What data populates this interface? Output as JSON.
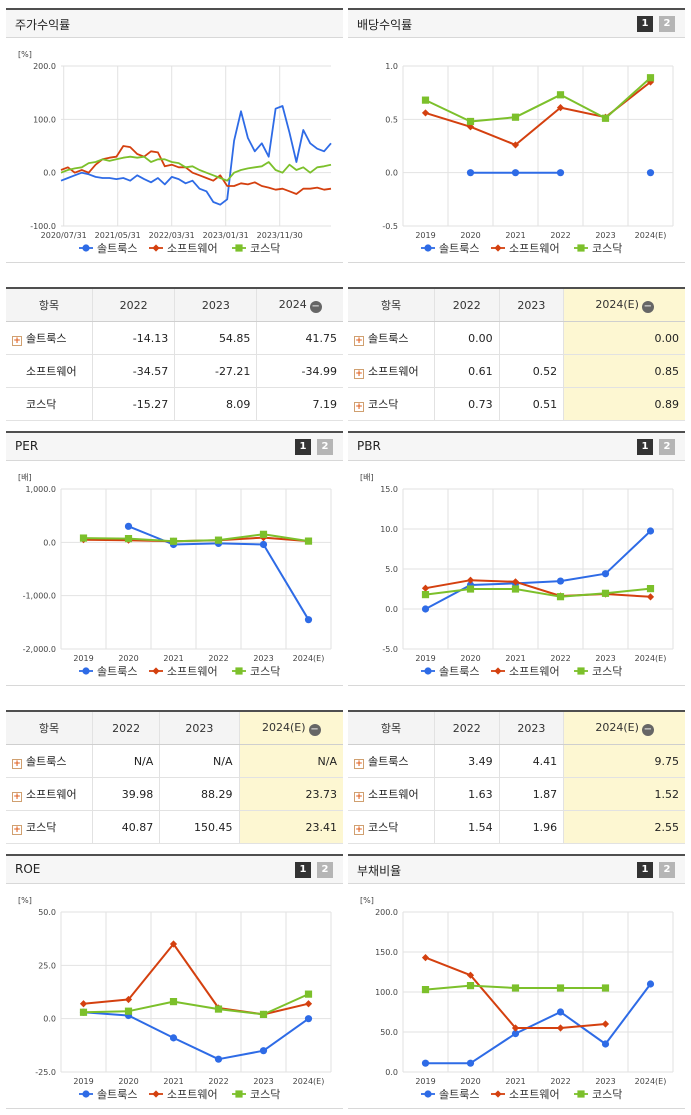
{
  "series_names": [
    "솔트룩스",
    "소프트웨어",
    "코스닥"
  ],
  "colors": {
    "solt": "#2e6be6",
    "sw": "#d4400f",
    "kosdaq": "#7cc02b",
    "grid": "#e2e2e2"
  },
  "buttons": {
    "one": "1",
    "two": "2"
  },
  "panels": {
    "stock": {
      "title": "주가수익률",
      "unit": "[%]",
      "chart_data": {
        "type": "line",
        "ylim": [
          -100,
          200
        ],
        "yticks": [
          "200.0",
          "100.0",
          "0.0",
          "-100.0"
        ],
        "xticks": [
          "2020/07/31",
          "2021/05/31",
          "2022/03/31",
          "2023/01/31",
          "2023/11/30"
        ],
        "n": 40,
        "series": [
          {
            "name": "솔트룩스",
            "values": [
              -15,
              -10,
              -5,
              0,
              -3,
              -8,
              -10,
              -10,
              -12,
              -10,
              -15,
              -5,
              -12,
              -18,
              -10,
              -22,
              -8,
              -12,
              -20,
              -15,
              -30,
              -35,
              -55,
              -60,
              -50,
              60,
              115,
              65,
              40,
              55,
              30,
              120,
              125,
              75,
              20,
              80,
              55,
              45,
              40,
              55
            ]
          },
          {
            "name": "소프트웨어",
            "values": [
              5,
              10,
              0,
              5,
              0,
              15,
              25,
              28,
              30,
              50,
              48,
              35,
              30,
              40,
              38,
              12,
              15,
              10,
              10,
              0,
              -5,
              -10,
              -15,
              -5,
              -25,
              -25,
              -20,
              -22,
              -18,
              -25,
              -28,
              -32,
              -30,
              -35,
              -40,
              -30,
              -30,
              -28,
              -32,
              -30
            ]
          },
          {
            "name": "코스닥",
            "values": [
              0,
              5,
              8,
              10,
              18,
              20,
              25,
              22,
              25,
              28,
              30,
              28,
              30,
              20,
              25,
              25,
              20,
              18,
              10,
              12,
              5,
              0,
              -5,
              -10,
              -15,
              0,
              5,
              8,
              10,
              12,
              20,
              5,
              0,
              15,
              5,
              10,
              0,
              10,
              12,
              15
            ]
          }
        ]
      }
    },
    "dividend": {
      "title": "배당수익률",
      "chart_data": {
        "type": "line",
        "ylim": [
          -0.5,
          1.0
        ],
        "yticks": [
          "1.0",
          "0.5",
          "0.0",
          "-0.5"
        ],
        "categories": [
          "2019",
          "2020",
          "2021",
          "2022",
          "2023",
          "2024(E)"
        ],
        "series": [
          {
            "name": "솔트룩스",
            "values": [
              null,
              0.0,
              0.0,
              0.0,
              null,
              0.0
            ]
          },
          {
            "name": "소프트웨어",
            "values": [
              0.56,
              0.43,
              0.26,
              0.61,
              0.52,
              0.85
            ]
          },
          {
            "name": "코스닥",
            "values": [
              0.68,
              0.48,
              0.52,
              0.73,
              0.51,
              0.89
            ]
          }
        ]
      }
    },
    "per": {
      "title": "PER",
      "unit": "[배]",
      "chart_data": {
        "type": "line",
        "ylim": [
          -2000,
          1000
        ],
        "yticks": [
          "1,000.0",
          "0.0",
          "-1,000.0",
          "-2,000.0"
        ],
        "categories": [
          "2019",
          "2020",
          "2021",
          "2022",
          "2023",
          "2024(E)"
        ],
        "series": [
          {
            "name": "솔트룩스",
            "values": [
              null,
              300,
              -40,
              -20,
              -40,
              -1450
            ]
          },
          {
            "name": "소프트웨어",
            "values": [
              50,
              40,
              20,
              40,
              88,
              24
            ]
          },
          {
            "name": "코스닥",
            "values": [
              80,
              70,
              20,
              41,
              150,
              23
            ]
          }
        ]
      }
    },
    "pbr": {
      "title": "PBR",
      "unit": "[배]",
      "chart_data": {
        "type": "line",
        "ylim": [
          -5,
          15
        ],
        "yticks": [
          "15.0",
          "10.0",
          "5.0",
          "0.0",
          "-5.0"
        ],
        "categories": [
          "2019",
          "2020",
          "2021",
          "2022",
          "2023",
          "2024(E)"
        ],
        "series": [
          {
            "name": "솔트룩스",
            "values": [
              0.0,
              3.0,
              3.2,
              3.49,
              4.41,
              9.75
            ]
          },
          {
            "name": "소프트웨어",
            "values": [
              2.6,
              3.6,
              3.4,
              1.63,
              1.87,
              1.52
            ]
          },
          {
            "name": "코스닥",
            "values": [
              1.8,
              2.5,
              2.5,
              1.54,
              1.96,
              2.55
            ]
          }
        ]
      }
    },
    "roe": {
      "title": "ROE",
      "unit": "[%]",
      "chart_data": {
        "type": "line",
        "ylim": [
          -25,
          50
        ],
        "yticks": [
          "50.0",
          "25.0",
          "0.0",
          "-25.0"
        ],
        "categories": [
          "2019",
          "2020",
          "2021",
          "2022",
          "2023",
          "2024(E)"
        ],
        "series": [
          {
            "name": "솔트룩스",
            "values": [
              3,
              1.5,
              -9,
              -19,
              -15,
              0
            ]
          },
          {
            "name": "소프트웨어",
            "values": [
              7,
              9,
              35,
              5,
              2,
              7
            ]
          },
          {
            "name": "코스닥",
            "values": [
              3,
              3.5,
              8,
              4.5,
              2,
              11.5
            ]
          }
        ]
      }
    },
    "debt": {
      "title": "부채비율",
      "unit": "[%]",
      "chart_data": {
        "type": "line",
        "ylim": [
          0,
          200
        ],
        "yticks": [
          "200.0",
          "150.0",
          "100.0",
          "50.0",
          "0.0"
        ],
        "categories": [
          "2019",
          "2020",
          "2021",
          "2022",
          "2023",
          "2024(E)"
        ],
        "series": [
          {
            "name": "솔트룩스",
            "values": [
              11,
              11,
              48,
              75,
              35,
              110
            ]
          },
          {
            "name": "소프트웨어",
            "values": [
              143,
              121,
              55,
              55,
              60,
              null
            ]
          },
          {
            "name": "코스닥",
            "values": [
              103,
              108,
              105,
              105,
              105,
              null
            ]
          }
        ]
      }
    }
  },
  "tables": {
    "stock": {
      "header": [
        "항목",
        "2022",
        "2023",
        "2024"
      ],
      "rows": [
        {
          "name": "솔트룩스",
          "plus": true,
          "vals": [
            "-14.13",
            "54.85",
            "41.75"
          ]
        },
        {
          "name": "소프트웨어",
          "plus": false,
          "vals": [
            "-34.57",
            "-27.21",
            "-34.99"
          ]
        },
        {
          "name": "코스닥",
          "plus": false,
          "vals": [
            "-15.27",
            "8.09",
            "7.19"
          ]
        }
      ]
    },
    "dividend": {
      "header": [
        "항목",
        "2022",
        "2023",
        "2024(E)"
      ],
      "rows": [
        {
          "name": "솔트룩스",
          "plus": true,
          "vals": [
            "0.00",
            "",
            "0.00"
          ]
        },
        {
          "name": "소프트웨어",
          "plus": true,
          "vals": [
            "0.61",
            "0.52",
            "0.85"
          ]
        },
        {
          "name": "코스닥",
          "plus": true,
          "vals": [
            "0.73",
            "0.51",
            "0.89"
          ]
        }
      ]
    },
    "per": {
      "header": [
        "항목",
        "2022",
        "2023",
        "2024(E)"
      ],
      "rows": [
        {
          "name": "솔트룩스",
          "plus": true,
          "vals": [
            "N/A",
            "N/A",
            "N/A"
          ]
        },
        {
          "name": "소프트웨어",
          "plus": true,
          "vals": [
            "39.98",
            "88.29",
            "23.73"
          ]
        },
        {
          "name": "코스닥",
          "plus": true,
          "vals": [
            "40.87",
            "150.45",
            "23.41"
          ]
        }
      ]
    },
    "pbr": {
      "header": [
        "항목",
        "2022",
        "2023",
        "2024(E)"
      ],
      "rows": [
        {
          "name": "솔트룩스",
          "plus": true,
          "vals": [
            "3.49",
            "4.41",
            "9.75"
          ]
        },
        {
          "name": "소프트웨어",
          "plus": true,
          "vals": [
            "1.63",
            "1.87",
            "1.52"
          ]
        },
        {
          "name": "코스닥",
          "plus": true,
          "vals": [
            "1.54",
            "1.96",
            "2.55"
          ]
        }
      ]
    }
  }
}
